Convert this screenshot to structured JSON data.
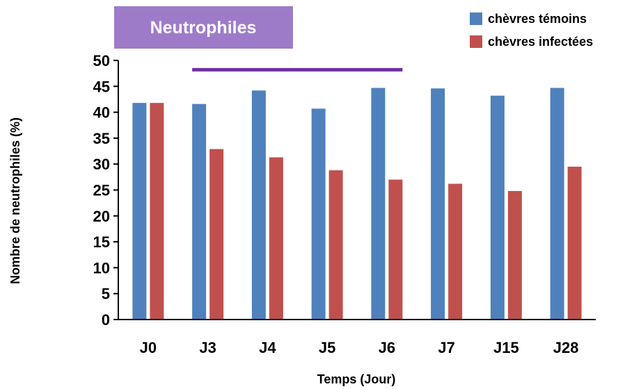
{
  "chart_data": {
    "type": "bar",
    "title": "Neutrophiles",
    "xlabel": "Temps (Jour)",
    "ylabel": "Nombre de neutrophiles (%)",
    "categories": [
      "J0",
      "J3",
      "J4",
      "J5",
      "J6",
      "J7",
      "J15",
      "J28"
    ],
    "series": [
      {
        "name": "chèvres témoins",
        "values": [
          41.8,
          41.6,
          44.2,
          40.7,
          44.7,
          44.6,
          43.2,
          44.7
        ]
      },
      {
        "name": "chèvres infectées",
        "values": [
          41.8,
          32.9,
          31.3,
          28.8,
          27.0,
          26.2,
          24.8,
          29.5
        ]
      }
    ],
    "ylim": [
      0,
      50
    ],
    "yticks": [
      0,
      5,
      10,
      15,
      20,
      25,
      30,
      35,
      40,
      45,
      50
    ],
    "grid": false,
    "legend_position": "top-right",
    "annotation_bar": {
      "from_category": "J3",
      "to_category": "J6",
      "y": 48.2
    },
    "colors": {
      "series": [
        "#4f81bd",
        "#c0504d"
      ],
      "title_box": "#9e7bc9",
      "annotation": "#7030a0",
      "axis": "#000000"
    }
  }
}
